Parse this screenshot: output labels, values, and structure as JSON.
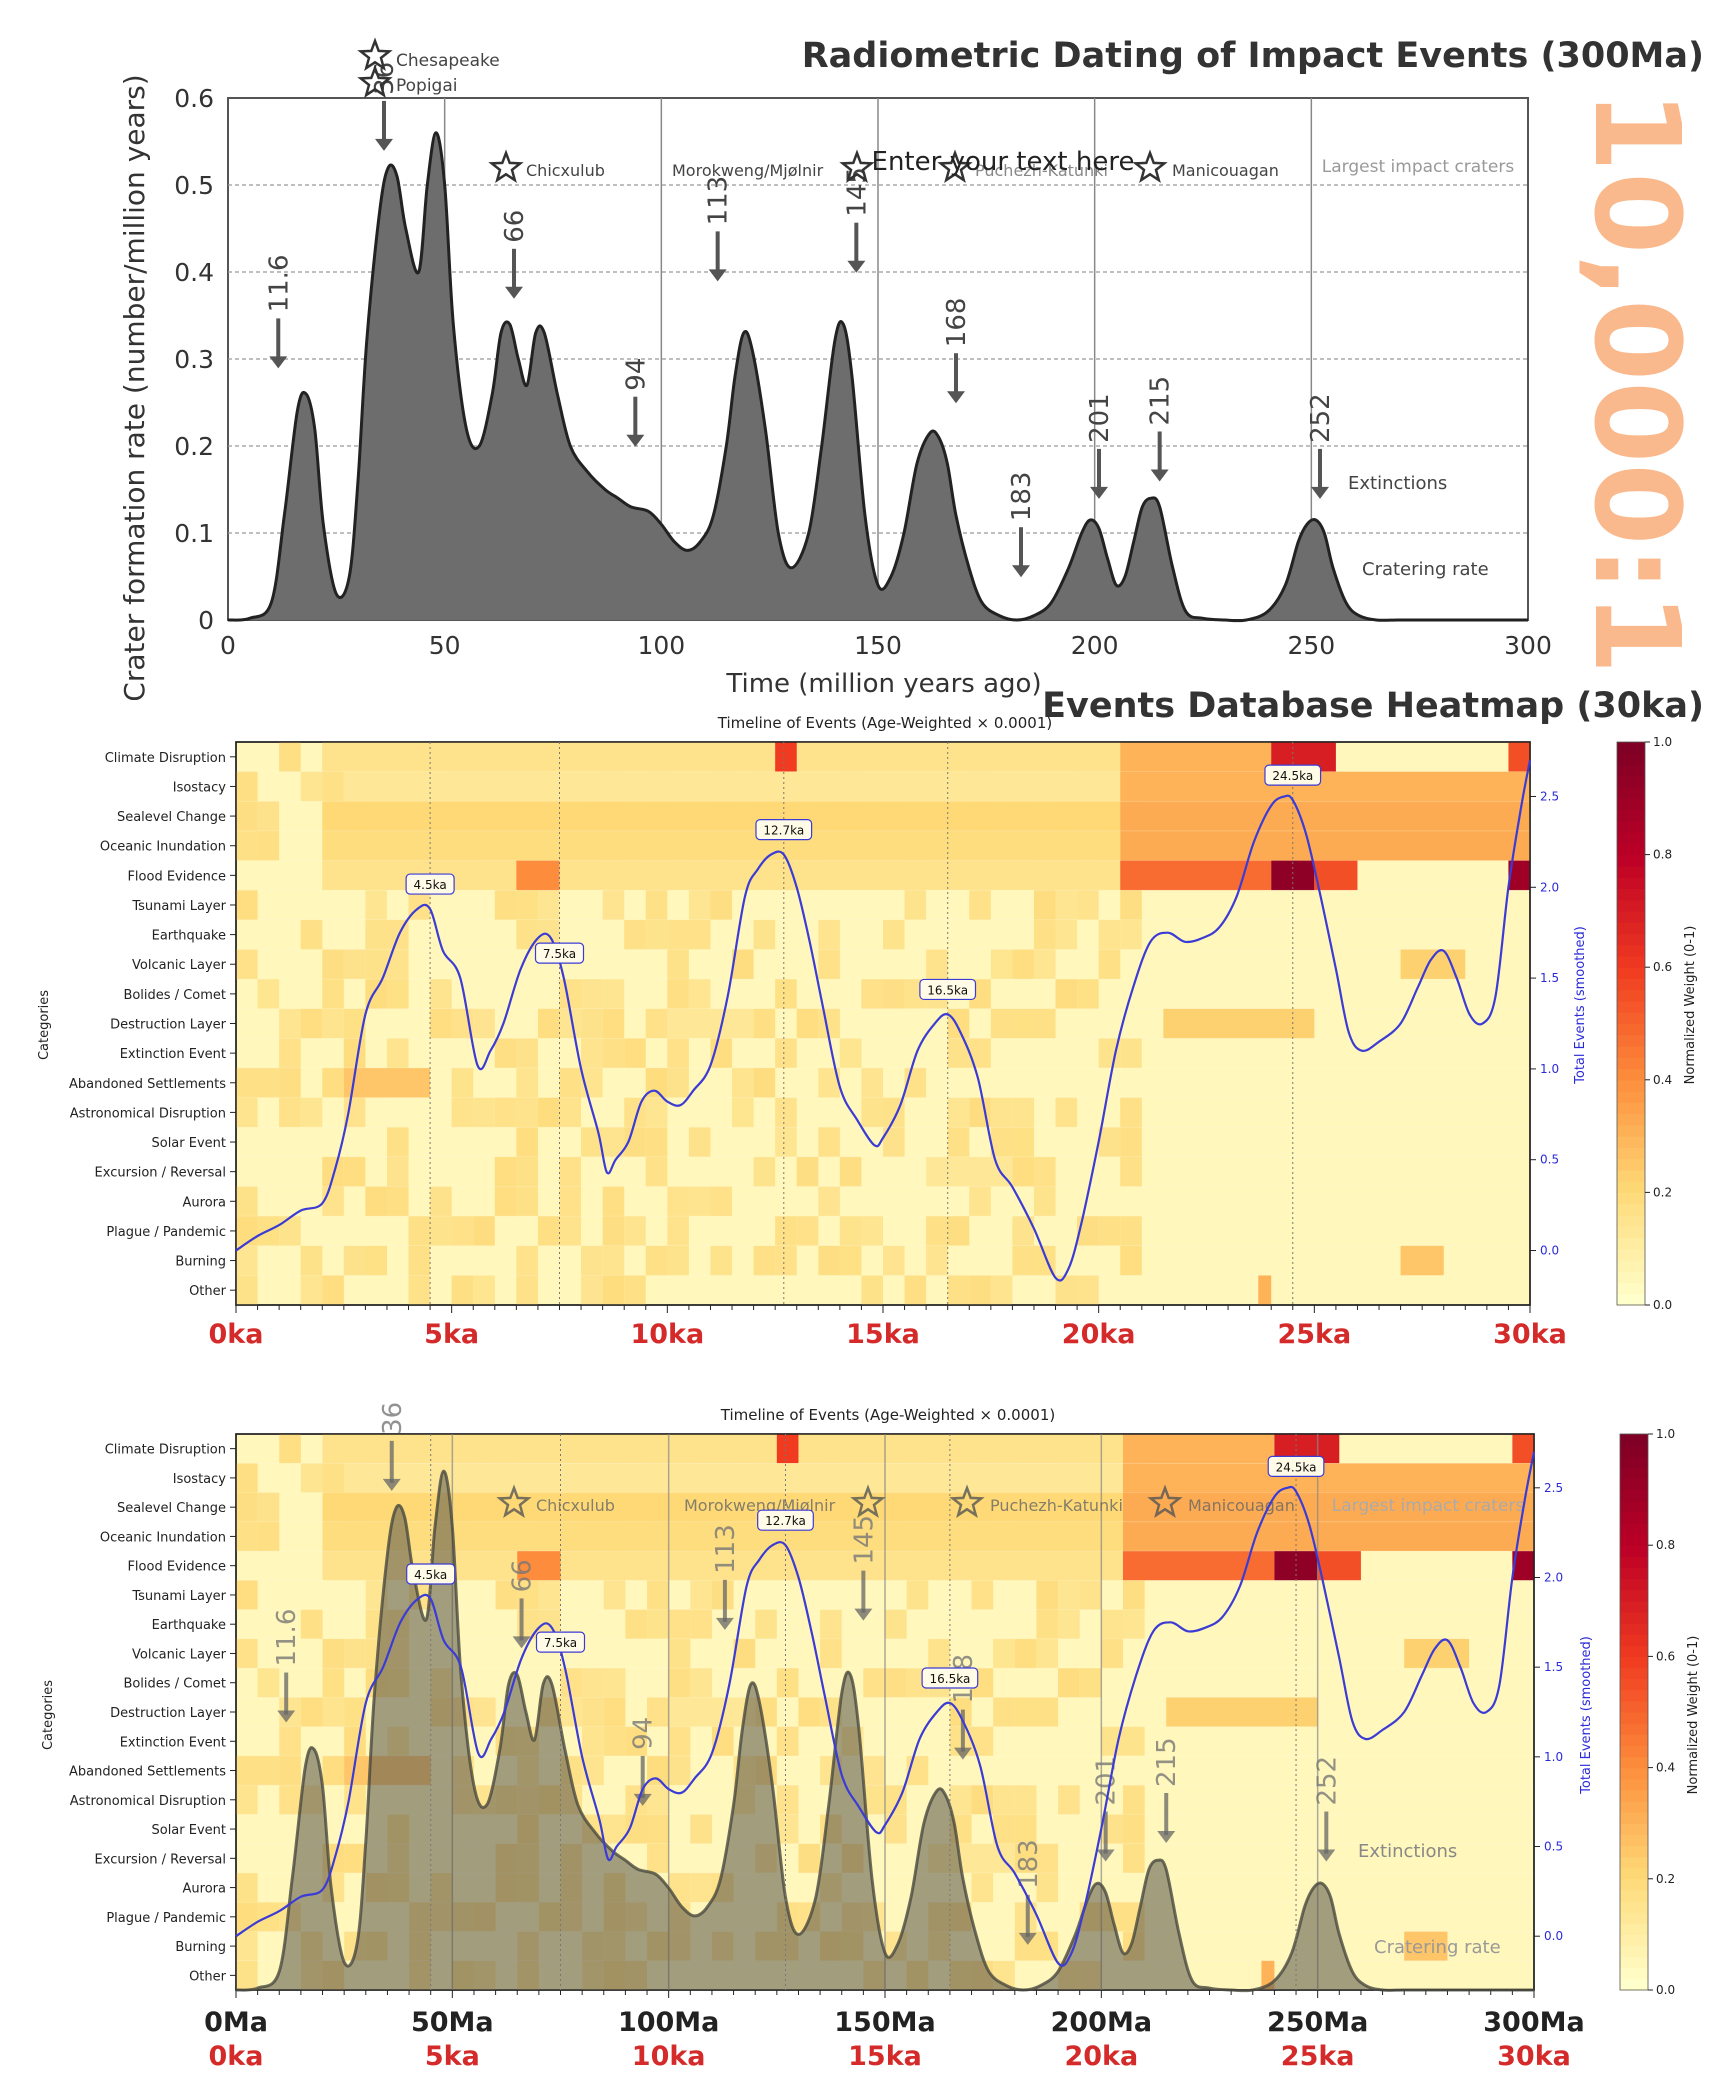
{
  "panel1": {
    "heading": "Radiometric Dating of Impact Events (300Ma)",
    "watermark": "10,000:1",
    "watermark_color": "#f9b98c",
    "ylabel": "Crater formation rate (number/million years)",
    "xlabel": "Time (million years ago)",
    "overlay_text": "Enter your text here",
    "craters_label": "Largest impact craters",
    "crater_names": [
      "Chesapeake",
      "Popigai",
      "Chicxulub",
      "Morokweng/Mjølnir",
      "Puchezh-Katunki",
      "Manicouagan"
    ],
    "legend_extinctions": "Extinctions",
    "legend_cratering": "Cratering rate",
    "y_ticks": [
      "0",
      "0.1",
      "0.2",
      "0.3",
      "0.4",
      "0.5",
      "0.6"
    ],
    "x_ticks": [
      "0",
      "50",
      "100",
      "150",
      "200",
      "250",
      "300"
    ],
    "extinction_labels": [
      "11.6",
      "36",
      "66",
      "94",
      "113",
      "145",
      "168",
      "183",
      "201",
      "215",
      "252"
    ]
  },
  "panel2": {
    "heading": "Events Database Heatmap (30ka)",
    "chart_title": "Timeline of Events (Age-Weighted × 0.0001)",
    "ylabel": "Categories",
    "right_axis_label": "Total Events (smoothed)",
    "colorbar_label": "Normalized Weight (0-1)",
    "categories": [
      "Climate Disruption",
      "Isostacy",
      "Sealevel Change",
      "Oceanic Inundation",
      "Flood Evidence",
      "Tsunami Layer",
      "Earthquake",
      "Volcanic Layer",
      "Bolides / Comet",
      "Destruction Layer",
      "Extinction Event",
      "Abandoned Settlements",
      "Astronomical Disruption",
      "Solar Event",
      "Excursion / Reversal",
      "Aurora",
      "Plague / Pandemic",
      "Burning",
      "Other"
    ],
    "right_ticks": [
      "0.0",
      "0.5",
      "1.0",
      "1.5",
      "2.0",
      "2.5"
    ],
    "colorbar_ticks": [
      "0.0",
      "0.2",
      "0.4",
      "0.6",
      "0.8",
      "1.0"
    ],
    "peak_labels": [
      "4.5ka",
      "7.5ka",
      "12.7ka",
      "16.5ka",
      "24.5ka"
    ],
    "x_ticks": [
      "0ka",
      "5ka",
      "10ka",
      "15ka",
      "20ka",
      "25ka",
      "30ka"
    ],
    "tick_color": "#d42a2a"
  },
  "panel3": {
    "chart_title": "Timeline of Events (Age-Weighted × 0.0001)",
    "x_ticks_ma": [
      "0Ma",
      "50Ma",
      "100Ma",
      "150Ma",
      "200Ma",
      "250Ma",
      "300Ma"
    ],
    "x_ticks_ka": [
      "0ka",
      "5ka",
      "10ka",
      "15ka",
      "20ka",
      "25ka",
      "30ka"
    ]
  },
  "chart_data": [
    {
      "type": "area",
      "title": "Radiometric Dating of Impact Events (300Ma)",
      "xlabel": "Time (million years ago)",
      "ylabel": "Crater formation rate (number/million years)",
      "xlim": [
        0,
        300
      ],
      "ylim": [
        0,
        0.6
      ],
      "series": [
        {
          "name": "Cratering rate",
          "x": [
            0,
            5,
            10,
            13,
            16,
            18,
            20,
            22,
            25,
            28,
            30,
            32,
            35,
            37,
            39,
            41,
            44,
            46,
            48,
            50,
            52,
            55,
            58,
            61,
            63,
            65,
            67,
            69,
            71,
            73,
            76,
            79,
            83,
            87,
            90,
            93,
            97,
            100,
            103,
            106,
            109,
            112,
            115,
            117,
            119,
            121,
            124,
            127,
            130,
            134,
            137,
            140,
            142,
            144,
            147,
            150,
            153,
            156,
            159,
            162,
            164,
            166,
            168,
            171,
            174,
            178,
            182,
            186,
            190,
            194,
            197,
            199,
            201,
            203,
            205,
            207,
            209,
            211,
            213,
            215,
            218,
            221,
            225,
            230,
            235,
            240,
            244,
            247,
            249,
            251,
            253,
            255,
            258,
            261,
            265,
            270,
            275,
            280,
            290,
            300
          ],
          "y": [
            0,
            0.002,
            0.02,
            0.12,
            0.24,
            0.26,
            0.22,
            0.11,
            0.03,
            0.05,
            0.16,
            0.32,
            0.47,
            0.52,
            0.51,
            0.45,
            0.4,
            0.5,
            0.56,
            0.5,
            0.34,
            0.22,
            0.2,
            0.26,
            0.33,
            0.34,
            0.3,
            0.27,
            0.33,
            0.33,
            0.26,
            0.2,
            0.17,
            0.15,
            0.14,
            0.13,
            0.125,
            0.11,
            0.09,
            0.08,
            0.09,
            0.12,
            0.2,
            0.28,
            0.33,
            0.31,
            0.22,
            0.1,
            0.06,
            0.1,
            0.2,
            0.32,
            0.34,
            0.28,
            0.12,
            0.04,
            0.05,
            0.1,
            0.18,
            0.215,
            0.21,
            0.18,
            0.12,
            0.06,
            0.02,
            0.005,
            0.0,
            0.005,
            0.02,
            0.06,
            0.1,
            0.115,
            0.105,
            0.07,
            0.04,
            0.05,
            0.09,
            0.13,
            0.14,
            0.13,
            0.06,
            0.01,
            0.002,
            0.0,
            0.0,
            0.01,
            0.04,
            0.09,
            0.11,
            0.115,
            0.1,
            0.06,
            0.02,
            0.005,
            0.0,
            0.0,
            0.0,
            0.0,
            0.0,
            0.0
          ]
        }
      ],
      "extinctions_ma": [
        11.6,
        36,
        66,
        94,
        113,
        145,
        168,
        183,
        201,
        215,
        252
      ],
      "impact_craters_ma": [
        {
          "name": "Chesapeake",
          "age": 35
        },
        {
          "name": "Popigai",
          "age": 35
        },
        {
          "name": "Chicxulub",
          "age": 66
        },
        {
          "name": "Morokweng/Mjølnir",
          "age": 145
        },
        {
          "name": "Puchezh-Katunki",
          "age": 167
        },
        {
          "name": "Manicouagan",
          "age": 214
        }
      ]
    },
    {
      "type": "heatmap",
      "title": "Timeline of Events (Age-Weighted × 0.0001)",
      "ylabel": "Categories",
      "xlim_ka": [
        0,
        30
      ],
      "categories": [
        "Climate Disruption",
        "Isostacy",
        "Sealevel Change",
        "Oceanic Inundation",
        "Flood Evidence",
        "Tsunami Layer",
        "Earthquake",
        "Volcanic Layer",
        "Bolides / Comet",
        "Destruction Layer",
        "Extinction Event",
        "Abandoned Settlements",
        "Astronomical Disruption",
        "Solar Event",
        "Excursion / Reversal",
        "Aurora",
        "Plague / Pandemic",
        "Burning",
        "Other"
      ],
      "blocks": [
        {
          "row": 0,
          "x0": 2.0,
          "x1": 20.5,
          "level": 0.15
        },
        {
          "row": 0,
          "x0": 12.5,
          "x1": 13.0,
          "level": 0.6
        },
        {
          "row": 0,
          "x0": 20.5,
          "x1": 24.0,
          "level": 0.3
        },
        {
          "row": 0,
          "x0": 24.0,
          "x1": 25.5,
          "level": 0.7
        },
        {
          "row": 0,
          "x0": 29.5,
          "x1": 30.0,
          "level": 0.55
        },
        {
          "row": 1,
          "x0": 2.5,
          "x1": 20.5,
          "level": 0.12
        },
        {
          "row": 1,
          "x0": 20.5,
          "x1": 30.0,
          "level": 0.3
        },
        {
          "row": 2,
          "x0": 2.0,
          "x1": 20.5,
          "level": 0.2
        },
        {
          "row": 2,
          "x0": 20.5,
          "x1": 30.0,
          "level": 0.32
        },
        {
          "row": 3,
          "x0": 2.0,
          "x1": 20.5,
          "level": 0.18
        },
        {
          "row": 3,
          "x0": 20.5,
          "x1": 30.0,
          "level": 0.32
        },
        {
          "row": 4,
          "x0": 2.0,
          "x1": 20.5,
          "level": 0.15
        },
        {
          "row": 4,
          "x0": 6.5,
          "x1": 7.5,
          "level": 0.4
        },
        {
          "row": 4,
          "x0": 20.5,
          "x1": 24.0,
          "level": 0.48
        },
        {
          "row": 4,
          "x0": 24.0,
          "x1": 25.0,
          "level": 0.95
        },
        {
          "row": 4,
          "x0": 25.0,
          "x1": 26.0,
          "level": 0.55
        },
        {
          "row": 4,
          "x0": 29.5,
          "x1": 30.0,
          "level": 0.9
        },
        {
          "row": 7,
          "x0": 27.0,
          "x1": 28.5,
          "level": 0.22
        },
        {
          "row": 9,
          "x0": 10.0,
          "x1": 12.0,
          "level": 0.12
        },
        {
          "row": 9,
          "x0": 21.5,
          "x1": 25.0,
          "level": 0.22
        },
        {
          "row": 11,
          "x0": 2.5,
          "x1": 4.5,
          "level": 0.25
        },
        {
          "row": 14,
          "x0": 16.0,
          "x1": 18.0,
          "level": 0.12
        },
        {
          "row": 17,
          "x0": 27.0,
          "x1": 28.0,
          "level": 0.25
        },
        {
          "row": 18,
          "x0": 23.7,
          "x1": 24.0,
          "level": 0.3
        }
      ],
      "colorbar_range": [
        0,
        1
      ]
    },
    {
      "type": "line",
      "title": "Total Events (smoothed)",
      "xlim_ka": [
        0,
        30
      ],
      "ylim": [
        -0.3,
        2.8
      ],
      "series": [
        {
          "name": "Total Events (smoothed)",
          "x": [
            0,
            0.5,
            1,
            1.5,
            2,
            2.3,
            2.6,
            3,
            3.4,
            3.8,
            4.2,
            4.5,
            4.8,
            5.2,
            5.6,
            5.9,
            6.2,
            6.6,
            7,
            7.3,
            7.6,
            8,
            8.4,
            8.6,
            8.8,
            9.1,
            9.4,
            9.7,
            10,
            10.3,
            10.6,
            11,
            11.4,
            11.8,
            12.1,
            12.4,
            12.7,
            13,
            13.3,
            13.6,
            14,
            14.4,
            14.8,
            15,
            15.4,
            15.8,
            16.2,
            16.5,
            16.8,
            17.2,
            17.6,
            18,
            18.5,
            19,
            19.3,
            19.6,
            20,
            20.4,
            20.8,
            21.2,
            21.6,
            22,
            22.4,
            22.8,
            23.2,
            23.6,
            24,
            24.3,
            24.5,
            24.8,
            25.1,
            25.5,
            25.8,
            26.1,
            26.5,
            27,
            27.4,
            27.7,
            28,
            28.3,
            28.6,
            28.9,
            29.2,
            29.5,
            29.8,
            30
          ],
          "y": [
            0.0,
            0.08,
            0.14,
            0.22,
            0.26,
            0.45,
            0.75,
            1.3,
            1.5,
            1.75,
            1.88,
            1.88,
            1.65,
            1.5,
            1.02,
            1.1,
            1.25,
            1.55,
            1.72,
            1.72,
            1.5,
            1.0,
            0.65,
            0.43,
            0.5,
            0.6,
            0.82,
            0.88,
            0.82,
            0.8,
            0.88,
            1.02,
            1.4,
            1.95,
            2.1,
            2.18,
            2.18,
            2.0,
            1.7,
            1.35,
            0.9,
            0.72,
            0.58,
            0.62,
            0.8,
            1.1,
            1.25,
            1.3,
            1.2,
            0.95,
            0.5,
            0.35,
            0.12,
            -0.15,
            -0.1,
            0.15,
            0.6,
            1.1,
            1.45,
            1.7,
            1.75,
            1.7,
            1.72,
            1.78,
            1.95,
            2.25,
            2.45,
            2.5,
            2.48,
            2.3,
            2.0,
            1.55,
            1.2,
            1.1,
            1.15,
            1.25,
            1.45,
            1.6,
            1.65,
            1.5,
            1.3,
            1.25,
            1.4,
            2.0,
            2.45,
            2.7
          ]
        }
      ],
      "peaks": [
        {
          "x": 4.5,
          "label": "4.5ka"
        },
        {
          "x": 7.5,
          "label": "7.5ka"
        },
        {
          "x": 12.7,
          "label": "12.7ka"
        },
        {
          "x": 16.5,
          "label": "16.5ka"
        },
        {
          "x": 24.5,
          "label": "24.5ka"
        }
      ]
    }
  ]
}
